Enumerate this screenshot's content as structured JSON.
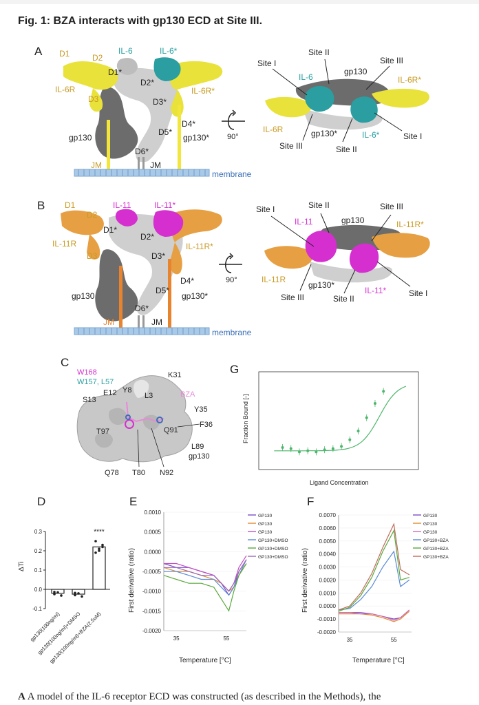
{
  "figure": {
    "title": "Fig. 1: BZA interacts with gp130 ECD at Site III.",
    "caption_letter": "A",
    "caption_text": "A model of the IL-6 receptor ECD was constructed (as described in the Methods), the"
  },
  "panel_a": {
    "letter": "A",
    "left_labels": [
      "D1",
      "D2",
      "IL-6",
      "IL-6*",
      "D1*",
      "D2*",
      "IL-6R",
      "IL-6R*",
      "D3",
      "D3*",
      "D4*",
      "D5*",
      "gp130",
      "gp130*",
      "D6*",
      "JM",
      "JM",
      "membrane"
    ],
    "rotation": "90°",
    "right_labels": [
      "Site II",
      "Site III",
      "Site I",
      "IL-6",
      "gp130",
      "IL-6R*",
      "IL-6R",
      "gp130*",
      "IL-6*",
      "Site I",
      "Site III",
      "Site II"
    ]
  },
  "panel_b": {
    "letter": "B",
    "left_labels": [
      "D1",
      "D2",
      "IL-11",
      "IL-11*",
      "D1*",
      "D2*",
      "IL-11R",
      "IL-11R*",
      "D3",
      "D3*",
      "D4*",
      "D5*",
      "gp130",
      "gp130*",
      "D6*",
      "JM",
      "JM",
      "membrane"
    ],
    "rotation": "90°",
    "right_labels": [
      "Site II",
      "Site III",
      "Site I",
      "IL-11",
      "gp130",
      "IL-11R*",
      "IL-11R",
      "gp130*",
      "IL-11*",
      "Site I",
      "Site III",
      "Site II"
    ]
  },
  "panel_c": {
    "letter": "C",
    "labels": [
      "W168",
      "W157, L57",
      "K31",
      "E12",
      "Y8",
      "L3",
      "BZA",
      "S13",
      "Y35",
      "F36",
      "T97",
      "Q91",
      "L89",
      "gp130",
      "Q78",
      "T80",
      "N92"
    ]
  },
  "panel_d": {
    "letter": "D",
    "ylabel": "ΔTi",
    "yticks": [
      "0.3",
      "0.2",
      "0.1",
      "0.0",
      "-0.1"
    ],
    "categories": [
      "gp130(100ng/ml)",
      "gp130(100ng/ml)+DMSO",
      "gp130(100ng/ml)+BZA(2.5uM)"
    ],
    "significance": "****"
  },
  "panel_e": {
    "letter": "E",
    "ylabel": "First derivative (ratio)",
    "xlabel": "Temperature [°C]",
    "yticks": [
      "0.0010",
      "0.0005",
      "0.0000",
      "-0.0005",
      "-0.0010",
      "-0.0015",
      "-0.0020"
    ],
    "xticks": [
      "35",
      "55"
    ],
    "legend": [
      "GP130",
      "GP130",
      "GP130",
      "GP130+DMSO",
      "GP130+DMSO",
      "GP130+DMSO"
    ]
  },
  "panel_f": {
    "letter": "F",
    "ylabel": "First derivative (ratio)",
    "xlabel": "Temperature [°C]",
    "yticks": [
      "0.0070",
      "0.0060",
      "0.0050",
      "0.0040",
      "0.0030",
      "0.0020",
      "0.0010",
      "0.0000",
      "-0.0010",
      "-0.0020"
    ],
    "xticks": [
      "35",
      "55"
    ],
    "legend": [
      "GP130",
      "GP130",
      "GP130",
      "GP130+BZA",
      "GP130+BZA",
      "GP130+BZA"
    ]
  },
  "panel_g": {
    "letter": "G",
    "ylabel": "Fraction Bound [-]",
    "xlabel": "Ligand Concentration"
  },
  "colors": {
    "yellow": "#e8e23a",
    "teal": "#2a9ea0",
    "orange": "#e6a043",
    "magenta": "#d52fd0",
    "gray_dark": "#6c6c6c",
    "gray_light": "#cfcfcf",
    "membrane": "#a9c9e8",
    "jm_yellow": "#f2e63a",
    "jm_orange": "#e9842e",
    "label_gold": "#c99a22",
    "label_teal": "#2a9ea0",
    "label_magenta": "#d52fd0",
    "label_pink": "#e889d8",
    "fit_green": "#4cb66b"
  },
  "chart_data": [
    {
      "type": "bar",
      "categories": [
        "gp130(100ng/ml)",
        "gp130(100ng/ml)+DMSO",
        "gp130(100ng/ml)+BZA(2.5uM)"
      ],
      "values": [
        -0.02,
        -0.025,
        0.22
      ],
      "ylabel": "ΔTi",
      "ylim": [
        -0.1,
        0.3
      ]
    },
    {
      "type": "line",
      "xlabel": "Temperature [°C]",
      "ylabel": "First derivative (ratio)",
      "ylim": [
        -0.002,
        0.001
      ],
      "series": [
        {
          "name": "GP130",
          "color": "#7b4fc4",
          "x": [
            30,
            35,
            40,
            45,
            50,
            53,
            56,
            58,
            60,
            63
          ],
          "y": [
            -0.0003,
            -0.0004,
            -0.0004,
            -0.0005,
            -0.0006,
            -0.0008,
            -0.0011,
            -0.0009,
            -0.0005,
            -0.0002
          ]
        },
        {
          "name": "GP130",
          "color": "#e08a2c",
          "x": [
            30,
            35,
            40,
            45,
            50,
            53,
            56,
            58,
            60,
            63
          ],
          "y": [
            -0.0004,
            -0.0005,
            -0.0005,
            -0.0006,
            -0.0007,
            -0.0008,
            -0.001,
            -0.0009,
            -0.0006,
            -0.0003
          ]
        },
        {
          "name": "GP130",
          "color": "#c24fc4",
          "x": [
            30,
            35,
            40,
            45,
            50,
            53,
            56,
            58,
            60,
            63
          ],
          "y": [
            -0.0003,
            -0.0003,
            -0.0004,
            -0.0005,
            -0.0006,
            -0.0008,
            -0.001,
            -0.0008,
            -0.0004,
            -0.0001
          ]
        },
        {
          "name": "GP130+DMSO",
          "color": "#5b8bd6",
          "x": [
            30,
            35,
            40,
            45,
            50,
            53,
            56,
            58,
            60,
            63
          ],
          "y": [
            -0.0005,
            -0.0005,
            -0.0006,
            -0.0007,
            -0.0007,
            -0.0009,
            -0.0011,
            -0.0009,
            -0.0006,
            -0.0002
          ]
        },
        {
          "name": "GP130+DMSO",
          "color": "#59a93b",
          "x": [
            30,
            35,
            40,
            45,
            50,
            53,
            56,
            58,
            60,
            63
          ],
          "y": [
            -0.0006,
            -0.0007,
            -0.0008,
            -0.0008,
            -0.0009,
            -0.0012,
            -0.0015,
            -0.001,
            -0.0006,
            -0.0003
          ]
        },
        {
          "name": "GP130+DMSO",
          "color": "#9a6ab8",
          "x": [
            30,
            35,
            40,
            45,
            50,
            53,
            56,
            58,
            60,
            63
          ],
          "y": [
            -0.0004,
            -0.0004,
            -0.0005,
            -0.0006,
            -0.0006,
            -0.0008,
            -0.001,
            -0.0008,
            -0.0005,
            -0.0002
          ]
        }
      ]
    },
    {
      "type": "line",
      "xlabel": "Temperature [°C]",
      "ylabel": "First derivative (ratio)",
      "ylim": [
        -0.002,
        0.007
      ],
      "series": [
        {
          "name": "GP130",
          "color": "#7b4fc4",
          "x": [
            30,
            35,
            40,
            45,
            50,
            55,
            58,
            62
          ],
          "y": [
            -0.0005,
            -0.0005,
            -0.0005,
            -0.0006,
            -0.0008,
            -0.001,
            -0.0009,
            -0.0003
          ]
        },
        {
          "name": "GP130",
          "color": "#e08a2c",
          "x": [
            30,
            35,
            40,
            45,
            50,
            55,
            58,
            62
          ],
          "y": [
            -0.0006,
            -0.0006,
            -0.0006,
            -0.0007,
            -0.0009,
            -0.0012,
            -0.001,
            -0.0004
          ]
        },
        {
          "name": "GP130",
          "color": "#d46ab3",
          "x": [
            30,
            35,
            40,
            45,
            50,
            55,
            58,
            62
          ],
          "y": [
            -0.0005,
            -0.0005,
            -0.0006,
            -0.0006,
            -0.0008,
            -0.0011,
            -0.0009,
            -0.0003
          ]
        },
        {
          "name": "GP130+BZA",
          "color": "#5b8bd6",
          "x": [
            30,
            35,
            40,
            45,
            50,
            55,
            58,
            62
          ],
          "y": [
            -0.0003,
            -0.0002,
            0.0005,
            0.0015,
            0.003,
            0.0042,
            0.0015,
            0.002
          ]
        },
        {
          "name": "GP130+BZA",
          "color": "#59a93b",
          "x": [
            30,
            35,
            40,
            45,
            50,
            55,
            58,
            62
          ],
          "y": [
            -0.0004,
            -0.0001,
            0.0008,
            0.0022,
            0.0042,
            0.0058,
            0.002,
            0.0022
          ]
        },
        {
          "name": "GP130+BZA",
          "color": "#c06a5a",
          "x": [
            30,
            35,
            40,
            45,
            50,
            55,
            58,
            62
          ],
          "y": [
            -0.0003,
            0.0,
            0.001,
            0.0025,
            0.0045,
            0.0063,
            0.0028,
            0.0024
          ]
        }
      ]
    },
    {
      "type": "scatter",
      "xlabel": "Ligand Concentration",
      "ylabel": "Fraction Bound [-]",
      "x": [
        -8.5,
        -8.2,
        -7.9,
        -7.6,
        -7.3,
        -7.0,
        -6.7,
        -6.4,
        -6.1,
        -5.8,
        -5.5,
        -5.2,
        -4.9
      ],
      "y": [
        0.15,
        0.14,
        0.11,
        0.12,
        0.11,
        0.13,
        0.14,
        0.16,
        0.22,
        0.3,
        0.42,
        0.55,
        0.66
      ]
    }
  ]
}
